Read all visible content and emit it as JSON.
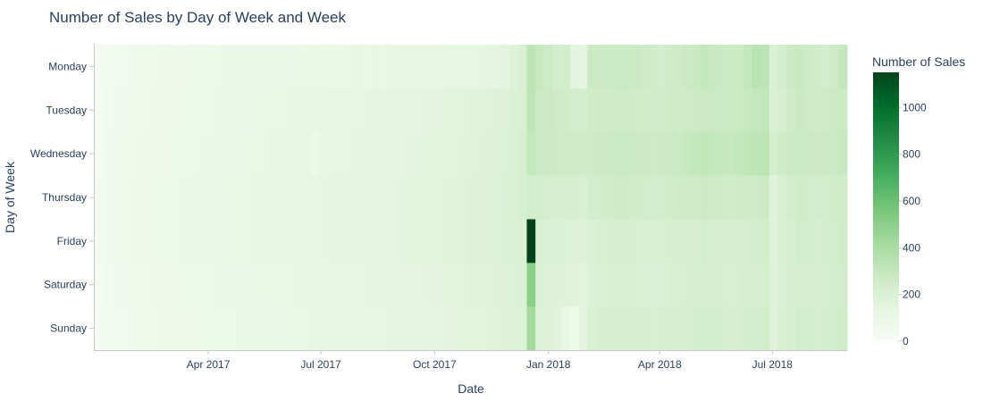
{
  "chart_data": {
    "type": "heatmap",
    "title": "Number of Sales by Day of Week and Week",
    "xlabel": "Date",
    "ylabel": "Day of Week",
    "y_categories": [
      "Monday",
      "Tuesday",
      "Wednesday",
      "Thursday",
      "Friday",
      "Saturday",
      "Sunday"
    ],
    "x_tick_labels": [
      "Apr 2017",
      "Jul 2017",
      "Oct 2017",
      "Jan 2018",
      "Apr 2018",
      "Jul 2018"
    ],
    "x_tick_dates": [
      "2017-04-01",
      "2017-07-01",
      "2017-10-01",
      "2018-01-01",
      "2018-04-01",
      "2018-07-01"
    ],
    "x_start_date": "2017-01-02",
    "x_range": [
      "2017-01-02",
      "2018-08-27"
    ],
    "colorbar": {
      "title": "Number of Sales",
      "tick_values": [
        0,
        200,
        400,
        600,
        800,
        1000
      ],
      "range": [
        0,
        1150
      ],
      "colorscale": [
        "#f7fcf5",
        "#e5f5e0",
        "#c7e9c0",
        "#a1d99b",
        "#74c476",
        "#41ab5d",
        "#238b45",
        "#006d2c",
        "#00441b"
      ]
    },
    "series_by_day": {
      "Monday": [
        20,
        35,
        45,
        50,
        55,
        60,
        65,
        70,
        75,
        80,
        80,
        85,
        85,
        90,
        90,
        95,
        95,
        100,
        100,
        95,
        95,
        100,
        100,
        105,
        105,
        110,
        105,
        110,
        105,
        110,
        115,
        110,
        115,
        110,
        115,
        115,
        120,
        120,
        125,
        120,
        125,
        130,
        130,
        125,
        130,
        135,
        140,
        150,
        175,
        200,
        330,
        290,
        260,
        230,
        240,
        150,
        140,
        270,
        270,
        275,
        280,
        280,
        270,
        260,
        250,
        240,
        250,
        260,
        270,
        280,
        300,
        285,
        275,
        270,
        280,
        300,
        340,
        330,
        190,
        230,
        270,
        290,
        260,
        250,
        240,
        260,
        300,
        330,
        300,
        290,
        170
      ],
      "Tuesday": [
        25,
        40,
        50,
        55,
        60,
        65,
        70,
        75,
        75,
        80,
        85,
        85,
        90,
        90,
        95,
        95,
        100,
        100,
        105,
        105,
        110,
        110,
        115,
        115,
        120,
        120,
        120,
        125,
        125,
        130,
        130,
        130,
        135,
        135,
        140,
        140,
        145,
        145,
        150,
        150,
        155,
        155,
        160,
        165,
        165,
        170,
        175,
        180,
        190,
        200,
        320,
        280,
        270,
        260,
        250,
        240,
        230,
        250,
        250,
        255,
        260,
        260,
        250,
        245,
        240,
        245,
        250,
        255,
        260,
        265,
        270,
        270,
        275,
        270,
        280,
        290,
        300,
        310,
        200,
        220,
        250,
        270,
        260,
        255,
        260,
        270,
        280,
        300,
        310,
        300,
        150
      ],
      "Wednesday": [
        25,
        45,
        55,
        60,
        65,
        70,
        75,
        80,
        80,
        85,
        90,
        90,
        95,
        95,
        100,
        100,
        105,
        105,
        110,
        110,
        115,
        115,
        115,
        120,
        125,
        85,
        120,
        125,
        130,
        130,
        135,
        135,
        140,
        140,
        145,
        145,
        150,
        150,
        155,
        155,
        160,
        160,
        165,
        170,
        170,
        175,
        180,
        185,
        195,
        210,
        300,
        280,
        270,
        265,
        260,
        260,
        255,
        260,
        265,
        270,
        275,
        275,
        270,
        265,
        260,
        265,
        270,
        280,
        290,
        300,
        310,
        300,
        295,
        290,
        300,
        310,
        320,
        330,
        230,
        250,
        270,
        280,
        270,
        265,
        270,
        280,
        290,
        300,
        320,
        300,
        150
      ],
      "Thursday": [
        30,
        50,
        60,
        65,
        70,
        75,
        80,
        85,
        85,
        90,
        95,
        95,
        100,
        100,
        105,
        105,
        110,
        110,
        115,
        115,
        120,
        120,
        120,
        125,
        125,
        130,
        130,
        135,
        135,
        140,
        140,
        140,
        145,
        145,
        150,
        150,
        155,
        155,
        160,
        160,
        165,
        165,
        170,
        175,
        175,
        180,
        185,
        190,
        200,
        215,
        240,
        235,
        225,
        220,
        215,
        210,
        205,
        230,
        240,
        245,
        250,
        250,
        245,
        240,
        235,
        240,
        245,
        250,
        255,
        260,
        265,
        255,
        250,
        245,
        250,
        255,
        260,
        265,
        170,
        200,
        230,
        245,
        240,
        235,
        240,
        245,
        250,
        260,
        280,
        260,
        130
      ],
      "Friday": [
        30,
        50,
        60,
        65,
        70,
        75,
        80,
        85,
        85,
        90,
        95,
        95,
        100,
        100,
        105,
        105,
        110,
        110,
        115,
        115,
        120,
        120,
        120,
        125,
        125,
        130,
        130,
        135,
        135,
        140,
        140,
        140,
        145,
        145,
        150,
        150,
        155,
        155,
        160,
        160,
        165,
        165,
        170,
        175,
        175,
        180,
        185,
        190,
        195,
        200,
        1150,
        200,
        195,
        190,
        185,
        180,
        175,
        195,
        205,
        210,
        215,
        215,
        210,
        205,
        200,
        205,
        210,
        215,
        220,
        225,
        230,
        225,
        220,
        215,
        220,
        225,
        230,
        235,
        180,
        200,
        220,
        235,
        230,
        225,
        230,
        240,
        250,
        270,
        280,
        250,
        120
      ],
      "Saturday": [
        25,
        40,
        50,
        55,
        60,
        65,
        70,
        75,
        75,
        80,
        85,
        85,
        90,
        90,
        95,
        95,
        100,
        100,
        105,
        105,
        110,
        110,
        110,
        115,
        115,
        120,
        120,
        125,
        125,
        130,
        130,
        130,
        135,
        135,
        140,
        140,
        145,
        145,
        150,
        150,
        155,
        155,
        160,
        165,
        165,
        170,
        175,
        180,
        185,
        190,
        500,
        190,
        180,
        175,
        170,
        165,
        160,
        185,
        195,
        200,
        205,
        205,
        200,
        195,
        190,
        195,
        200,
        205,
        210,
        215,
        220,
        215,
        210,
        205,
        210,
        215,
        220,
        225,
        170,
        190,
        210,
        225,
        220,
        215,
        220,
        230,
        240,
        250,
        260,
        240,
        110
      ],
      "Sunday": [
        20,
        35,
        45,
        50,
        55,
        60,
        65,
        70,
        70,
        75,
        80,
        80,
        85,
        85,
        90,
        90,
        95,
        95,
        100,
        100,
        105,
        105,
        105,
        110,
        110,
        115,
        115,
        120,
        120,
        125,
        125,
        125,
        130,
        130,
        135,
        135,
        140,
        140,
        145,
        145,
        150,
        150,
        155,
        160,
        160,
        165,
        170,
        175,
        180,
        185,
        420,
        185,
        175,
        165,
        120,
        90,
        150,
        200,
        210,
        215,
        220,
        220,
        215,
        210,
        205,
        210,
        215,
        220,
        225,
        230,
        235,
        230,
        225,
        220,
        225,
        230,
        235,
        240,
        180,
        200,
        220,
        235,
        230,
        225,
        230,
        240,
        245,
        255,
        260,
        240,
        100
      ]
    }
  }
}
